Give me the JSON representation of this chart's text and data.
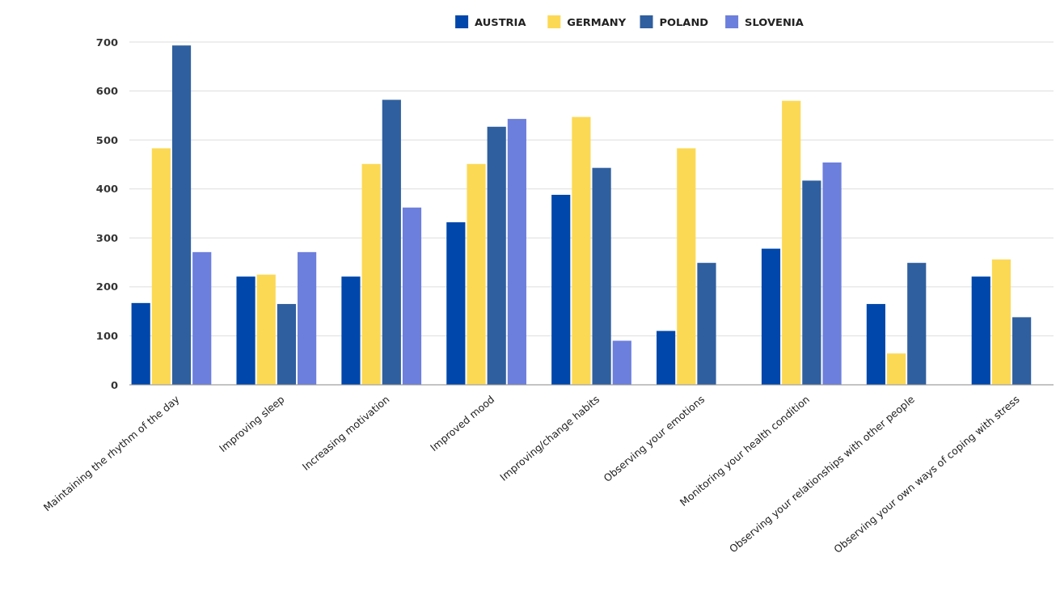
{
  "chart_data": {
    "type": "bar",
    "categories": [
      "Maintaining the rhythm of the day",
      "Improving sleep",
      "Increasing motivation",
      "Improved mood",
      "Improving/change habits",
      "Observing your emotions",
      "Monitoring your health condition",
      "Observing your relationships with other people",
      "Observing your own ways of coping with stress"
    ],
    "series": [
      {
        "name": "AUSTRIA",
        "color": "#0047ab",
        "values": [
          167,
          221,
          221,
          332,
          388,
          110,
          278,
          165,
          221
        ]
      },
      {
        "name": "GERMANY",
        "color": "#fcd955",
        "values": [
          483,
          225,
          451,
          451,
          547,
          483,
          580,
          64,
          256
        ]
      },
      {
        "name": "POLAND",
        "color": "#2f5f9e",
        "values": [
          693,
          165,
          582,
          527,
          443,
          249,
          417,
          249,
          138
        ]
      },
      {
        "name": "SLOVENIA",
        "color": "#6d7fdc",
        "values": [
          271,
          271,
          362,
          543,
          90,
          null,
          454,
          null,
          null
        ]
      }
    ],
    "ylim": [
      0,
      700
    ],
    "yticks": [
      0,
      100,
      200,
      300,
      400,
      500,
      600,
      700
    ],
    "grid": "y",
    "legend": "top"
  }
}
